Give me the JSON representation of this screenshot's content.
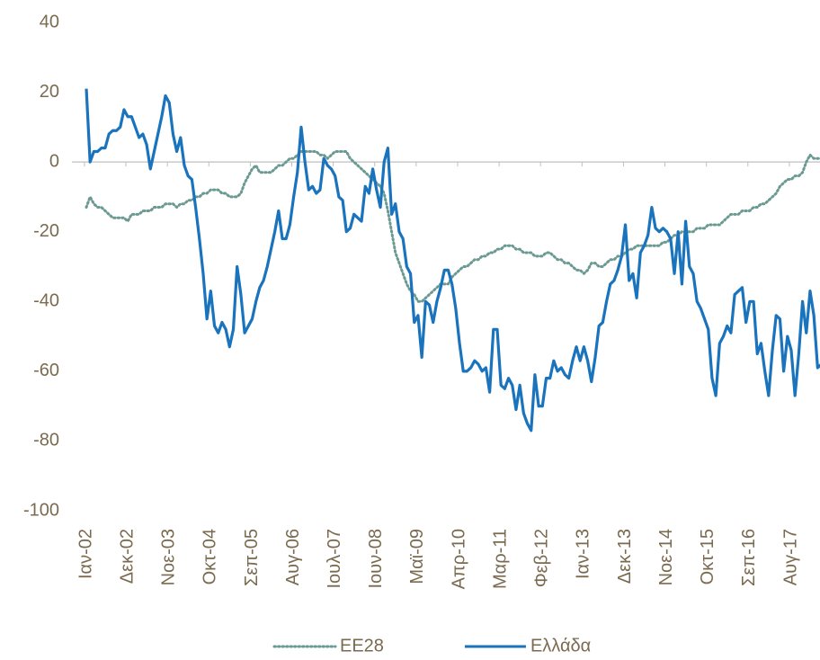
{
  "chart_data": {
    "type": "line",
    "categories": [
      "Ιαν-02",
      null,
      null,
      null,
      null,
      null,
      null,
      null,
      null,
      null,
      null,
      "Δεκ-02",
      null,
      null,
      null,
      null,
      null,
      null,
      null,
      null,
      null,
      null,
      "Νοε-03",
      null,
      null,
      null,
      null,
      null,
      null,
      null,
      null,
      null,
      null,
      "Οκτ-04",
      null,
      null,
      null,
      null,
      null,
      null,
      null,
      null,
      null,
      null,
      "Σεπ-05",
      null,
      null,
      null,
      null,
      null,
      null,
      null,
      null,
      null,
      null,
      "Αυγ-06",
      null,
      null,
      null,
      null,
      null,
      null,
      null,
      null,
      null,
      null,
      "Ιουλ-07",
      null,
      null,
      null,
      null,
      null,
      null,
      null,
      null,
      null,
      null,
      "Ιουν-08",
      null,
      null,
      null,
      null,
      null,
      null,
      null,
      null,
      null,
      null,
      "Μαϊ-09",
      null,
      null,
      null,
      null,
      null,
      null,
      null,
      null,
      null,
      null,
      "Απρ-10",
      null,
      null,
      null,
      null,
      null,
      null,
      null,
      null,
      null,
      null,
      "Μαρ-11",
      null,
      null,
      null,
      null,
      null,
      null,
      null,
      null,
      null,
      null,
      "Φεβ-12",
      null,
      null,
      null,
      null,
      null,
      null,
      null,
      null,
      null,
      null,
      "Ιαν-13",
      null,
      null,
      null,
      null,
      null,
      null,
      null,
      null,
      null,
      null,
      "Δεκ-13",
      null,
      null,
      null,
      null,
      null,
      null,
      null,
      null,
      null,
      null,
      "Νοε-14",
      null,
      null,
      null,
      null,
      null,
      null,
      null,
      null,
      null,
      null,
      "Οκτ-15",
      null,
      null,
      null,
      null,
      null,
      null,
      null,
      null,
      null,
      null,
      "Σεπ-16",
      null,
      null,
      null,
      null,
      null,
      null,
      null,
      null,
      null,
      null,
      "Αυγ-17",
      null,
      null,
      null,
      null,
      null,
      null,
      null,
      null,
      null
    ],
    "series": [
      {
        "name": "EE28",
        "color": "#6b9a93",
        "dash": true,
        "values": [
          -13,
          -10,
          -12,
          -13,
          -13,
          -14,
          -15,
          -16,
          -16,
          -16,
          -16,
          -17,
          -15,
          -15,
          -15,
          -14,
          -14,
          -14,
          -13,
          -13,
          -13,
          -12,
          -12,
          -12,
          -13,
          -12,
          -12,
          -11,
          -11,
          -10,
          -10,
          -9,
          -9,
          -8,
          -8,
          -8,
          -9,
          -9,
          -10,
          -10,
          -10,
          -9,
          -6,
          -4,
          -2,
          -1,
          -3,
          -3,
          -3,
          -3,
          -2,
          -1,
          -1,
          0,
          1,
          1,
          2,
          3,
          3,
          3,
          3,
          3,
          2,
          2,
          1,
          2,
          3,
          3,
          3,
          3,
          1,
          0,
          -1,
          -2,
          -3,
          -4,
          -5,
          -6,
          -7,
          -9,
          -14,
          -20,
          -26,
          -29,
          -32,
          -35,
          -37,
          -38,
          -40,
          -40,
          -39,
          -38,
          -37,
          -36,
          -35,
          -35,
          -35,
          -33,
          -32,
          -31,
          -30,
          -30,
          -29,
          -28,
          -28,
          -27,
          -27,
          -26,
          -26,
          -25,
          -25,
          -24,
          -24,
          -24,
          -25,
          -25,
          -26,
          -26,
          -26,
          -27,
          -27,
          -27,
          -26,
          -26,
          -27,
          -28,
          -28,
          -29,
          -29,
          -30,
          -31,
          -31,
          -32,
          -31,
          -29,
          -29,
          -30,
          -30,
          -29,
          -28,
          -28,
          -27,
          -27,
          -26,
          -25,
          -25,
          -24,
          -24,
          -24,
          -24,
          -24,
          -24,
          -24,
          -23,
          -23,
          -22,
          -21,
          -21,
          -20,
          -20,
          -20,
          -20,
          -19,
          -19,
          -19,
          -18,
          -18,
          -18,
          -18,
          -17,
          -16,
          -15,
          -15,
          -15,
          -14,
          -14,
          -14,
          -13,
          -13,
          -12,
          -12,
          -11,
          -10,
          -9,
          -7,
          -6,
          -5,
          -5,
          -4,
          -4,
          -3,
          0,
          2,
          1,
          1,
          1,
          1
        ]
      },
      {
        "name": "Ελλάδα",
        "color": "#1a73bd",
        "dash": false,
        "values": [
          21,
          0,
          3,
          3,
          4,
          4,
          8,
          9,
          9,
          10,
          15,
          13,
          13,
          10,
          7,
          8,
          5,
          -2,
          3,
          8,
          13,
          19,
          17,
          8,
          3,
          7,
          -1,
          -4,
          -5,
          -13,
          -22,
          -32,
          -45,
          -37,
          -47,
          -49,
          -46,
          -48,
          -53,
          -48,
          -30,
          -38,
          -49,
          -47,
          -45,
          -40,
          -36,
          -34,
          -30,
          -25,
          -20,
          -14,
          -22,
          -22,
          -18,
          -10,
          -3,
          10,
          0,
          -8,
          -7,
          -9,
          -8,
          1,
          -1,
          -2,
          -4,
          -10,
          -11,
          -20,
          -19,
          -15,
          -16,
          -17,
          -7,
          -9,
          -2,
          -8,
          -13,
          0,
          4,
          -15,
          -12,
          -20,
          -22,
          -30,
          -32,
          -46,
          -44,
          -56,
          -40,
          -41,
          -46,
          -40,
          -36,
          -31,
          -31,
          -35,
          -42,
          -52,
          -60,
          -60,
          -59,
          -57,
          -58,
          -60,
          -59,
          -66,
          -48,
          -48,
          -64,
          -65,
          -62,
          -64,
          -71,
          -64,
          -72,
          -75,
          -77,
          -61,
          -70,
          -70,
          -62,
          -62,
          -57,
          -60,
          -59,
          -61,
          -62,
          -57,
          -53,
          -57,
          -53,
          -57,
          -63,
          -56,
          -47,
          -46,
          -40,
          -35,
          -34,
          -31,
          -27,
          -18,
          -34,
          -32,
          -39,
          -26,
          -24,
          -21,
          -13,
          -19,
          -20,
          -19,
          -20,
          -22,
          -32,
          -20,
          -35,
          -17,
          -30,
          -32,
          -40,
          -42,
          -45,
          -48,
          -62,
          -67,
          -52,
          -50,
          -47,
          -49,
          -38,
          -37,
          -36,
          -46,
          -40,
          -40,
          -55,
          -52,
          -60,
          -67,
          -54,
          -44,
          -45,
          -60,
          -50,
          -54,
          -67,
          -55,
          -40,
          -49,
          -37,
          -44,
          -59,
          -58,
          -50
        ]
      }
    ],
    "ylim": [
      -100,
      40
    ],
    "yticks": [
      -100,
      -80,
      -60,
      -40,
      -20,
      0,
      20,
      40
    ],
    "legend": "bottom"
  }
}
